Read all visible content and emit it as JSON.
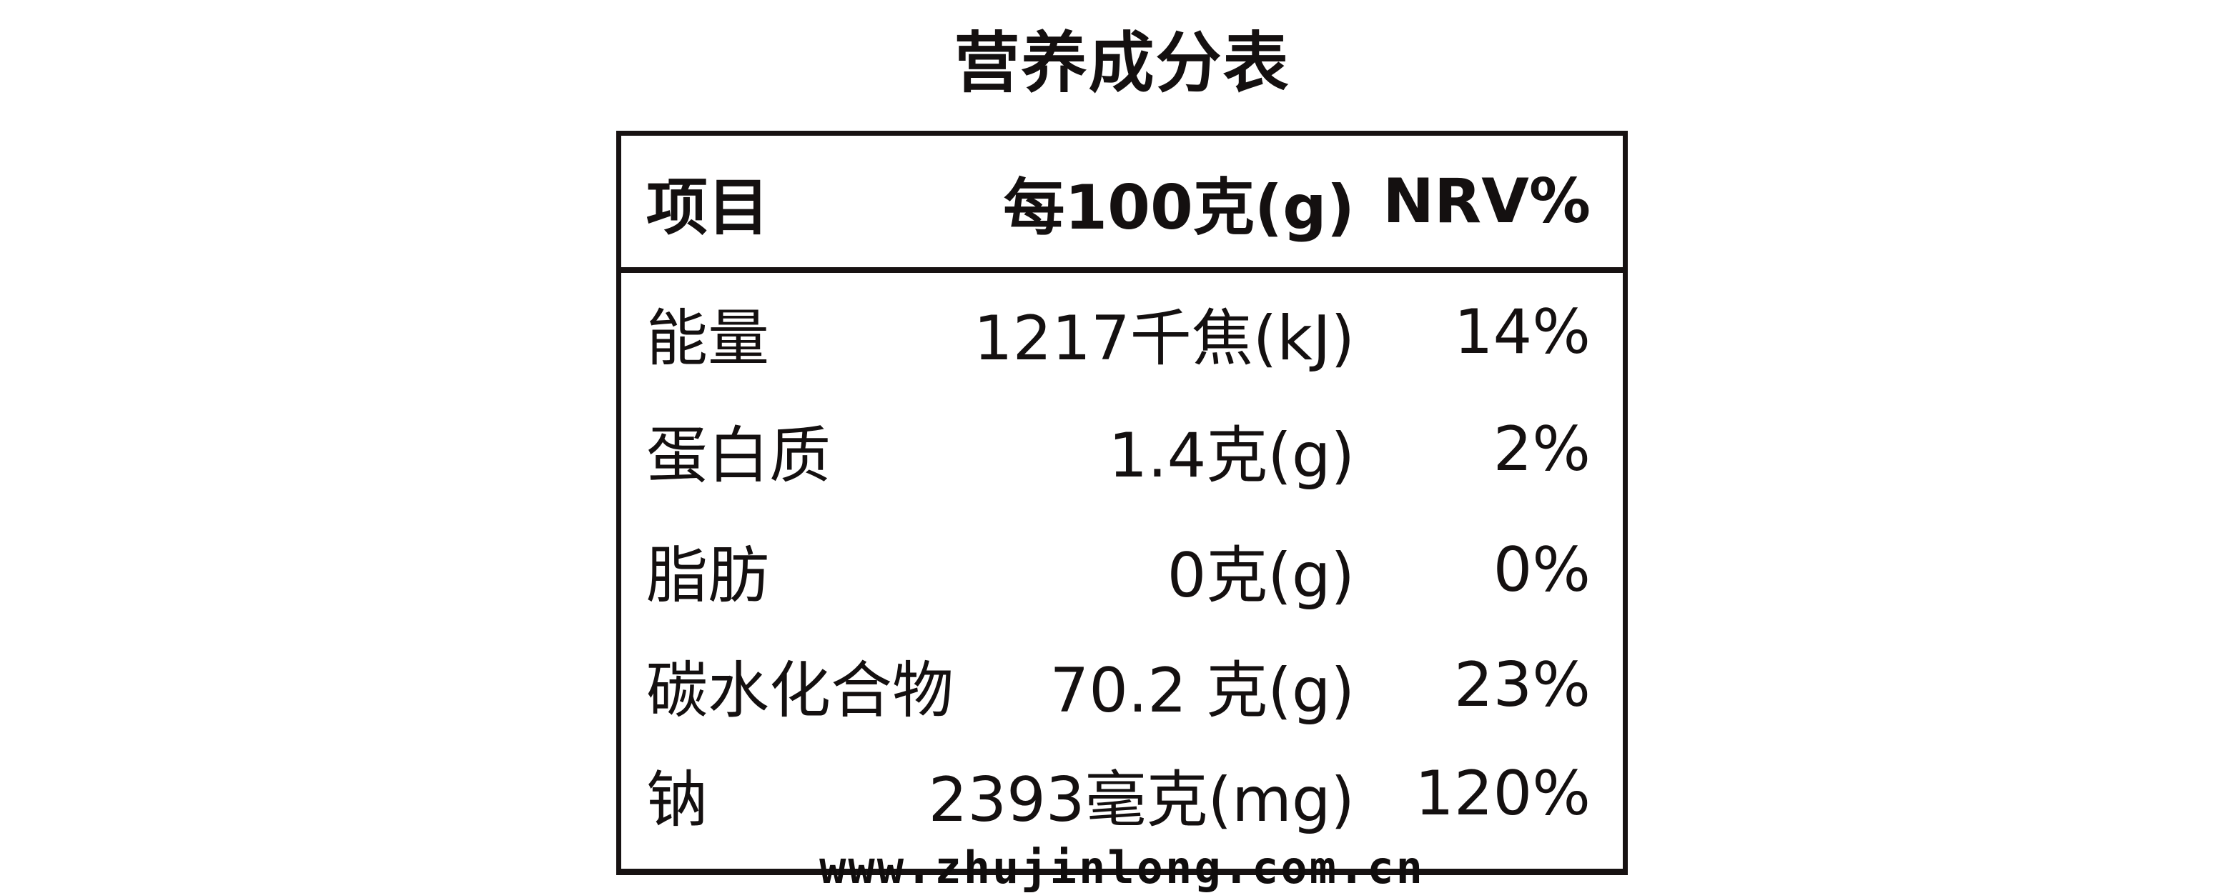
{
  "title": "营养成分表",
  "colors": {
    "ink": "#141010",
    "background": "#ffffff"
  },
  "table": {
    "header": {
      "item": "项目",
      "per100g": "每100克(g)",
      "nrv": "NRV%"
    },
    "rows": [
      {
        "item": "能量",
        "amount": "1217千焦(kJ)",
        "nrv": "14%"
      },
      {
        "item": "蛋白质",
        "amount": "1.4克(g)",
        "nrv": "2%"
      },
      {
        "item": "脂肪",
        "amount": "0克(g)",
        "nrv": "0%"
      },
      {
        "item": "碳水化合物",
        "amount": "70.2 克(g)",
        "nrv": "23%"
      },
      {
        "item": "钠",
        "amount": "2393毫克(mg)",
        "nrv": "120%"
      }
    ]
  },
  "watermark": "www.zhujinlong.com.cn"
}
